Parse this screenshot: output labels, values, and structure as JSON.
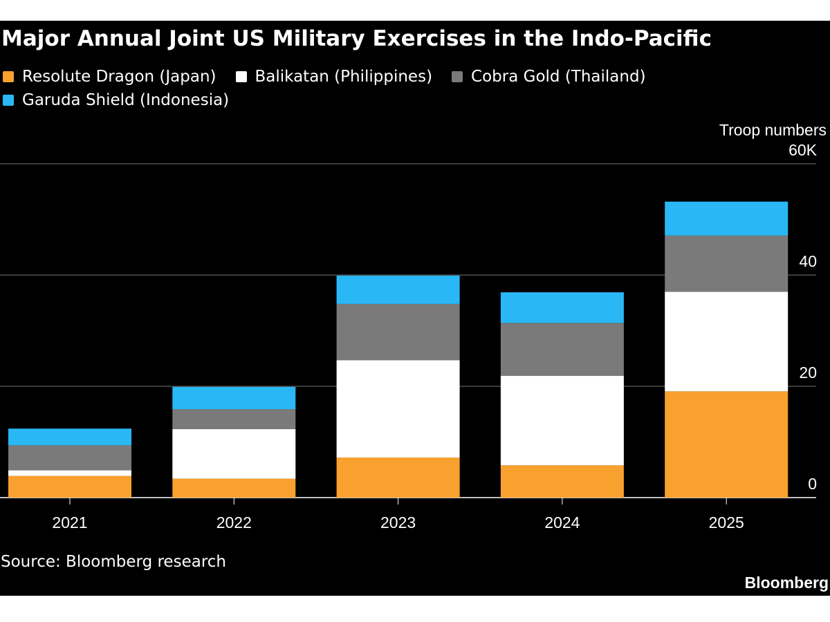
{
  "chart_data": {
    "type": "stacked_bar",
    "title": "Major Annual Joint US Military Exercises in the Indo-Pacific",
    "y_label": "Troop numbers",
    "categories": [
      "2021",
      "2022",
      "2023",
      "2024",
      "2025"
    ],
    "series": [
      {
        "name": "Resolute Dragon (Japan)",
        "color": "#f9a12e",
        "values": [
          3.9,
          3.4,
          7.2,
          5.8,
          19.1
        ]
      },
      {
        "name": "Balikatan (Philippines)",
        "color": "#ffffff",
        "values": [
          1.0,
          8.9,
          17.5,
          16.1,
          17.9
        ]
      },
      {
        "name": "Cobra Gold (Thailand)",
        "color": "#7a7a7a",
        "values": [
          4.5,
          3.6,
          10.1,
          9.5,
          10.1
        ]
      },
      {
        "name": "Garuda Shield (Indonesia)",
        "color": "#29b8f5",
        "values": [
          3.0,
          4.0,
          5.1,
          5.5,
          6.1
        ]
      }
    ],
    "ylim": [
      0,
      60
    ],
    "yticks": [
      0,
      20,
      40,
      {
        "value": 60,
        "label": "60K"
      }
    ],
    "grid": true,
    "source": "Source: Bloomberg research",
    "brand": "Bloomberg"
  }
}
